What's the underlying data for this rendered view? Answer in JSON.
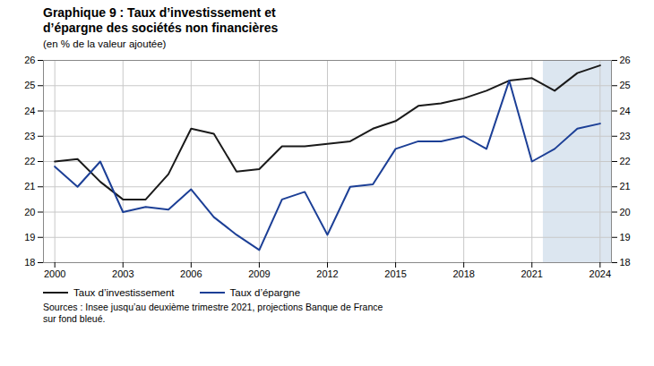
{
  "chart_data": {
    "type": "line",
    "title": "Graphique 9 : Taux d’investissement et\nd’épargne des sociétés non financières",
    "subtitle": "(en % de la valeur ajoutée)",
    "source": "Sources : Insee jusqu’au deuxième trimestre 2021, projections Banque de France\nsur fond bleué.",
    "x": [
      2000,
      2001,
      2002,
      2003,
      2004,
      2005,
      2006,
      2007,
      2008,
      2009,
      2010,
      2011,
      2012,
      2013,
      2014,
      2015,
      2016,
      2017,
      2018,
      2019,
      2020,
      2021,
      2022,
      2023,
      2024
    ],
    "series": [
      {
        "name": "Taux d’investissement",
        "color": "#1a1a1a",
        "values": [
          22.0,
          22.1,
          21.2,
          20.5,
          20.5,
          21.5,
          23.3,
          23.1,
          21.6,
          21.7,
          22.6,
          22.6,
          22.7,
          22.8,
          23.3,
          23.6,
          24.2,
          24.3,
          24.5,
          24.8,
          25.2,
          25.3,
          24.8,
          25.5,
          25.8
        ]
      },
      {
        "name": "Taux d’épargne",
        "color": "#1c3f96",
        "values": [
          21.8,
          21.0,
          22.0,
          20.0,
          20.2,
          20.1,
          20.9,
          19.8,
          19.1,
          18.5,
          20.5,
          20.8,
          19.1,
          21.0,
          21.1,
          22.5,
          22.8,
          22.8,
          23.0,
          22.5,
          25.2,
          22.0,
          22.5,
          23.3,
          23.5
        ]
      }
    ],
    "projection": {
      "from": 2022,
      "color": "#dce6f0"
    },
    "xlim": [
      1999.5,
      2024.5
    ],
    "xticks": [
      2000,
      2003,
      2006,
      2009,
      2012,
      2015,
      2018,
      2021,
      2024
    ],
    "ylim": [
      18,
      26
    ],
    "yticks": [
      18,
      19,
      20,
      21,
      22,
      23,
      24,
      25,
      26
    ],
    "grid": true,
    "legend": "bottom"
  }
}
